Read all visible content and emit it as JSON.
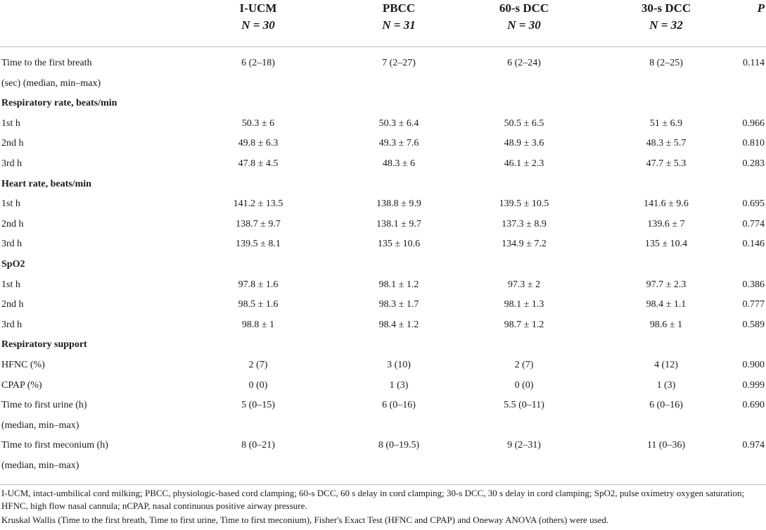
{
  "header": {
    "col1": {
      "name": "I-UCM",
      "n": "N = 30"
    },
    "col2": {
      "name": "PBCC",
      "n": "N = 31"
    },
    "col3": {
      "name": "60-s DCC",
      "n": "N = 30"
    },
    "col4": {
      "name": "30-s DCC",
      "n": "N = 32"
    },
    "p": "P"
  },
  "rows": [
    {
      "label": "Time to the first breath",
      "v1": "6 (2–18)",
      "v2": "7 (2–27)",
      "v3": "6 (2–24)",
      "v4": "8 (2–25)",
      "p": "0.114"
    },
    {
      "label": "(sec) (median, min–max)",
      "v1": "",
      "v2": "",
      "v3": "",
      "v4": "",
      "p": ""
    },
    {
      "label": "Respiratory rate, beats/min",
      "v1": "",
      "v2": "",
      "v3": "",
      "v4": "",
      "p": ""
    },
    {
      "label": "1st h",
      "v1": "50.3 ± 6",
      "v2": "50.3 ± 6.4",
      "v3": "50.5 ± 6.5",
      "v4": "51 ± 6.9",
      "p": "0.966"
    },
    {
      "label": "2nd h",
      "v1": "49.8 ± 6.3",
      "v2": "49.3 ± 7.6",
      "v3": "48.9 ± 3.6",
      "v4": "48.3 ± 5.7",
      "p": "0.810"
    },
    {
      "label": "3rd h",
      "v1": "47.8 ± 4.5",
      "v2": "48.3 ± 6",
      "v3": "46.1 ± 2.3",
      "v4": "47.7 ± 5.3",
      "p": "0.283"
    },
    {
      "label": "Heart rate, beats/min",
      "v1": "",
      "v2": "",
      "v3": "",
      "v4": "",
      "p": ""
    },
    {
      "label": "1st h",
      "v1": "141.2 ± 13.5",
      "v2": "138.8 ± 9.9",
      "v3": "139.5 ± 10.5",
      "v4": "141.6 ± 9.6",
      "p": "0.695"
    },
    {
      "label": "2nd h",
      "v1": "138.7 ± 9.7",
      "v2": "138.1 ± 9.7",
      "v3": "137.3 ± 8.9",
      "v4": "139.6 ± 7",
      "p": "0.774"
    },
    {
      "label": "3rd h",
      "v1": "139.5 ± 8.1",
      "v2": "135 ± 10.6",
      "v3": "134.9 ± 7.2",
      "v4": "135 ± 10.4",
      "p": "0.146"
    },
    {
      "label": "SpO2",
      "v1": "",
      "v2": "",
      "v3": "",
      "v4": "",
      "p": ""
    },
    {
      "label": "1st h",
      "v1": "97.8 ± 1.6",
      "v2": "98.1 ± 1.2",
      "v3": "97.3 ± 2",
      "v4": "97.7 ± 2.3",
      "p": "0.386"
    },
    {
      "label": "2nd h",
      "v1": "98.5 ± 1.6",
      "v2": "98.3 ± 1.7",
      "v3": "98.1 ± 1.3",
      "v4": "98.4 ± 1.1",
      "p": "0.777"
    },
    {
      "label": "3rd h",
      "v1": "98.8 ± 1",
      "v2": "98.4 ± 1.2",
      "v3": "98.7 ± 1.2",
      "v4": "98.6 ± 1",
      "p": "0.589"
    },
    {
      "label": "Respiratory support",
      "v1": "",
      "v2": "",
      "v3": "",
      "v4": "",
      "p": ""
    },
    {
      "label": "HFNC (%)",
      "v1": "2 (7)",
      "v2": "3 (10)",
      "v3": "2 (7)",
      "v4": "4 (12)",
      "p": "0.900"
    },
    {
      "label": "CPAP (%)",
      "v1": "0 (0)",
      "v2": "1 (3)",
      "v3": "0 (0)",
      "v4": "1 (3)",
      "p": "0.999"
    },
    {
      "label": "Time to first urine (h)",
      "v1": "5 (0–15)",
      "v2": "6 (0–16)",
      "v3": "5.5 (0–11)",
      "v4": "6 (0–16)",
      "p": "0.690"
    },
    {
      "label": "(median, min–max)",
      "v1": "",
      "v2": "",
      "v3": "",
      "v4": "",
      "p": ""
    },
    {
      "label": "Time to first meconium (h)",
      "v1": "8 (0–21)",
      "v2": "8 (0–19.5)",
      "v3": "9 (2–31)",
      "v4": "11 (0–36)",
      "p": "0.974"
    },
    {
      "label": "(median, min–max)",
      "v1": "",
      "v2": "",
      "v3": "",
      "v4": "",
      "p": ""
    }
  ],
  "footnotes": {
    "abbrev": "I-UCM, intact-umbilical cord milking; PBCC, physiologic-based cord clamping; 60-s DCC, 60 s delay in cord clamping; 30-s DCC, 30 s delay in cord clamping; SpO2, pulse oximetry oxygen saturation; HFNC, high flow nasal cannula; nCPAP, nasal continuous positive airway pressure.",
    "tests": "Kruskal Wallis (Time to the first breath, Time to first urine, Time to first meconium), Fisher's Exact Test (HFNC and CPAP) and Oneway ANOVA (others) were used."
  }
}
